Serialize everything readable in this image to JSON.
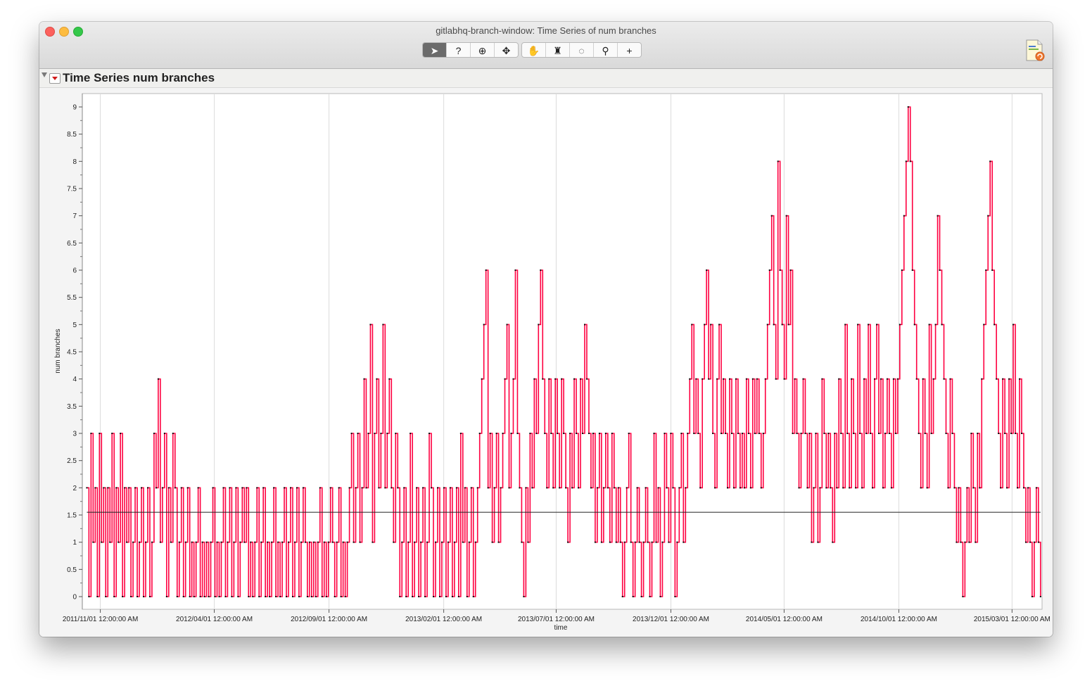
{
  "window": {
    "title": "gitlabhq-branch-window: Time Series of num branches"
  },
  "toolbar": {
    "tools": [
      {
        "name": "arrow-tool",
        "glyph": "➤",
        "active": true
      },
      {
        "name": "help-tool",
        "glyph": "?"
      },
      {
        "name": "selection-tool",
        "glyph": "⊕"
      },
      {
        "name": "move-tool",
        "glyph": "✥"
      },
      {
        "name": "hand-tool",
        "glyph": "✋"
      },
      {
        "name": "brush-tool",
        "glyph": "♜"
      },
      {
        "name": "lasso-tool",
        "glyph": "◌"
      },
      {
        "name": "magnifier-tool",
        "glyph": "⚲"
      },
      {
        "name": "crosshair-tool",
        "glyph": "+"
      }
    ]
  },
  "outline": {
    "title": "Time Series num branches"
  },
  "chart_data": {
    "type": "line",
    "xlabel": "time",
    "ylabel": "num branches",
    "ylim": [
      0,
      9
    ],
    "yticks": [
      "0",
      "0.5",
      "1",
      "1.5",
      "2",
      "2.5",
      "3",
      "3.5",
      "4",
      "4.5",
      "5",
      "5.5",
      "6",
      "6.5",
      "7",
      "7.5",
      "8",
      "8.5",
      "9"
    ],
    "xticks": [
      "2011/11/01 12:00:00 AM",
      "2012/04/01 12:00:00 AM",
      "2012/09/01 12:00:00 AM",
      "2013/02/01 12:00:00 AM",
      "2013/07/01 12:00:00 AM",
      "2013/12/01 12:00:00 AM",
      "2014/05/01 12:00:00 AM",
      "2014/10/01 12:00:00 AM",
      "2015/03/01 12:00:00 AM"
    ],
    "xrange": [
      "2011/10/08",
      "2015/04/10"
    ],
    "mean_line": 1.55,
    "series_color": "#ff0040",
    "series": [
      {
        "x_start": "2011/10/14",
        "x_end": "2015/04/08",
        "values": [
          2,
          0,
          3,
          1,
          2,
          0,
          3,
          1,
          2,
          0,
          2,
          1,
          3,
          0,
          2,
          1,
          3,
          0,
          2,
          1,
          2,
          0,
          1,
          2,
          0,
          1,
          2,
          0,
          1,
          2,
          0,
          1,
          3,
          2,
          4,
          1,
          2,
          3,
          0,
          2,
          1,
          3,
          2,
          0,
          1,
          2,
          0,
          1,
          2,
          0,
          1,
          0,
          1,
          2,
          0,
          1,
          0,
          1,
          0,
          1,
          2,
          0,
          1,
          0,
          1,
          2,
          0,
          1,
          2,
          0,
          1,
          2,
          0,
          1,
          2,
          1,
          2,
          0,
          1,
          0,
          1,
          2,
          0,
          1,
          2,
          0,
          1,
          0,
          1,
          2,
          0,
          1,
          0,
          1,
          2,
          0,
          1,
          2,
          0,
          1,
          2,
          0,
          1,
          2,
          1,
          0,
          1,
          0,
          1,
          0,
          1,
          2,
          0,
          1,
          0,
          1,
          2,
          1,
          0,
          1,
          2,
          0,
          1,
          0,
          1,
          2,
          3,
          1,
          2,
          3,
          1,
          2,
          4,
          2,
          3,
          5,
          1,
          3,
          4,
          2,
          3,
          5,
          2,
          3,
          4,
          2,
          1,
          3,
          2,
          0,
          1,
          2,
          0,
          1,
          3,
          0,
          1,
          2,
          0,
          1,
          2,
          0,
          1,
          3,
          2,
          0,
          1,
          2,
          0,
          1,
          2,
          0,
          1,
          2,
          0,
          1,
          2,
          0,
          3,
          1,
          2,
          0,
          1,
          2,
          0,
          1,
          2,
          3,
          4,
          5,
          6,
          2,
          3,
          1,
          2,
          3,
          1,
          2,
          3,
          4,
          5,
          2,
          3,
          4,
          6,
          3,
          2,
          1,
          0,
          2,
          1,
          3,
          2,
          4,
          3,
          5,
          6,
          4,
          3,
          2,
          4,
          3,
          2,
          4,
          3,
          2,
          4,
          3,
          2,
          1,
          3,
          2,
          4,
          3,
          2,
          4,
          3,
          5,
          4,
          3,
          2,
          3,
          1,
          2,
          3,
          1,
          2,
          3,
          2,
          1,
          3,
          2,
          1,
          2,
          1,
          0,
          1,
          2,
          3,
          1,
          0,
          1,
          2,
          1,
          0,
          1,
          2,
          1,
          0,
          1,
          3,
          1,
          2,
          0,
          1,
          3,
          2,
          1,
          3,
          2,
          0,
          1,
          2,
          3,
          1,
          2,
          3,
          4,
          5,
          3,
          4,
          3,
          2,
          4,
          5,
          6,
          4,
          5,
          3,
          2,
          4,
          5,
          3,
          4,
          3,
          2,
          4,
          3,
          2,
          4,
          3,
          2,
          3,
          2,
          4,
          3,
          2,
          4,
          3,
          4,
          3,
          2,
          3,
          4,
          5,
          6,
          7,
          5,
          4,
          8,
          6,
          5,
          4,
          7,
          5,
          6,
          3,
          4,
          3,
          2,
          3,
          4,
          3,
          2,
          3,
          1,
          2,
          3,
          1,
          2,
          4,
          3,
          2,
          3,
          2,
          1,
          3,
          2,
          4,
          3,
          2,
          5,
          3,
          2,
          4,
          3,
          2,
          5,
          3,
          2,
          4,
          3,
          5,
          3,
          2,
          4,
          5,
          3,
          4,
          2,
          3,
          4,
          3,
          2,
          4,
          3,
          4,
          5,
          6,
          7,
          8,
          9,
          8,
          6,
          5,
          4,
          3,
          2,
          4,
          3,
          2,
          5,
          3,
          4,
          5,
          7,
          6,
          5,
          4,
          3,
          2,
          4,
          3,
          2,
          1,
          2,
          1,
          0,
          1,
          2,
          1,
          3,
          2,
          1,
          3,
          2,
          4,
          5,
          6,
          7,
          8,
          6,
          5,
          4,
          3,
          2,
          4,
          3,
          2,
          4,
          3,
          5,
          3,
          2,
          4,
          3,
          2,
          1,
          2,
          1,
          0,
          1,
          2,
          1,
          0
        ]
      }
    ]
  }
}
